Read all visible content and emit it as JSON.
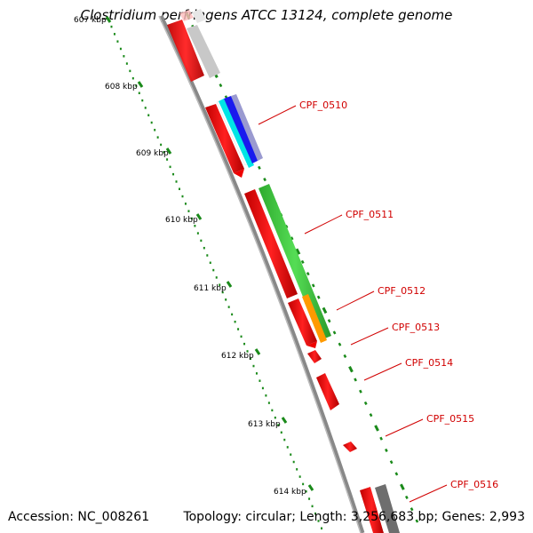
{
  "title": "Clostridium perfringens ATCC 13124, complete genome",
  "footer": {
    "accession": "Accession: NC_008261",
    "summary": "Topology: circular; Length: 3,256,683 bp; Genes: 2,993"
  },
  "scale": {
    "unit": "kbp",
    "ticks": [
      {
        "label": "607 kbp"
      },
      {
        "label": "608 kbp"
      },
      {
        "label": "609 kbp"
      },
      {
        "label": "610 kbp"
      },
      {
        "label": "611 kbp"
      },
      {
        "label": "612 kbp"
      },
      {
        "label": "613 kbp"
      },
      {
        "label": "614 kbp"
      }
    ]
  },
  "genes": [
    {
      "label": "CPF_0510"
    },
    {
      "label": "CPF_0511"
    },
    {
      "label": "CPF_0512"
    },
    {
      "label": "CPF_0513"
    },
    {
      "label": "CPF_0514"
    },
    {
      "label": "CPF_0515"
    },
    {
      "label": "CPF_0516"
    }
  ],
  "colors": {
    "backbone": "#8a8a8a",
    "cds": "#ff0000",
    "gene_bar": "#44cc44",
    "label": "#d10000",
    "tick": "#1a8a1a",
    "accent_orange": "#ff9900",
    "accent_cyan": "#00dddd",
    "accent_blue": "#2222ee",
    "accent_grey": "#777777",
    "accent_light": "#cccccc"
  }
}
